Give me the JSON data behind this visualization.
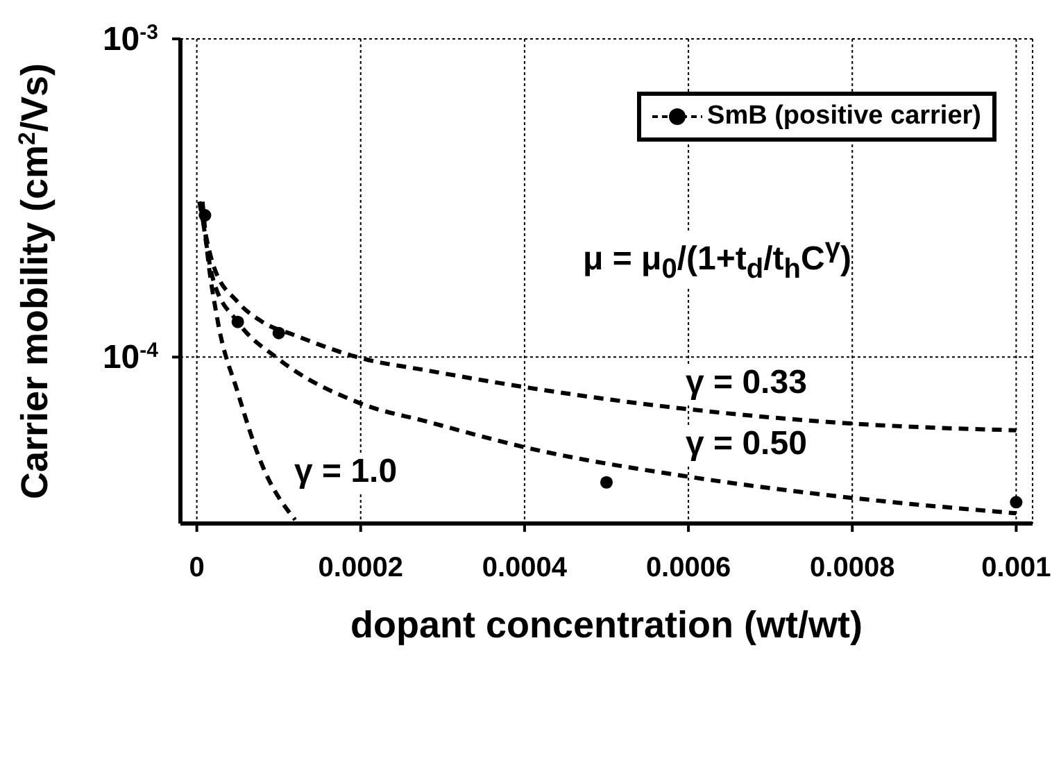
{
  "chart_data": {
    "type": "scatter",
    "xlabel": "dopant concentration (wt/wt)",
    "ylabel": "Carrier mobility (cm$^{2}$/Vs)",
    "xlim": [
      -2e-05,
      0.00102
    ],
    "xticks": [
      0,
      0.0002,
      0.0004,
      0.0006,
      0.0008,
      0.001
    ],
    "ylim": [
      3e-05,
      0.001
    ],
    "yticks": [
      {
        "value": 0.0001,
        "label": "10$^{-4}$"
      },
      {
        "value": 0.001,
        "label": "10$^{-3}$"
      }
    ],
    "log": "y",
    "grid": true,
    "legend": "top right",
    "marker": "circle",
    "series": [
      {
        "name": "SmB (positive carrier)",
        "color": "#000000",
        "x": [
          1e-05,
          5e-05,
          0.0001,
          0.0005,
          0.001
        ],
        "values": [
          0.000279,
          0.000129,
          0.000119,
          4.04e-05,
          3.5e-05
        ]
      },
      {
        "type": "line",
        "color": "#000000",
        "line_style": "dashed",
        "marker": "none",
        "x": [
          3e-06,
          2e-05,
          5e-05,
          8e-05,
          0.00012,
          0.0002,
          0.00028,
          0.0004,
          0.0006,
          0.0008,
          0.001
        ],
        "values": [
          0.000308,
          0.000195,
          0.000149,
          0.000129,
          0.000117,
          9.93e-05,
          9.09e-05,
          8.05e-05,
          6.86e-05,
          6.18e-05,
          5.89e-05
        ]
      },
      {
        "type": "line",
        "color": "#000000",
        "line_style": "dashed",
        "marker": "none",
        "x": [
          5e-06,
          2e-05,
          5e-05,
          0.0001,
          0.0002,
          0.00028,
          0.00041,
          0.0006,
          0.0008,
          0.001
        ],
        "values": [
          0.0003,
          0.000175,
          0.000129,
          9.85e-05,
          7.15e-05,
          6.28e-05,
          5.14e-05,
          4.21e-05,
          3.61e-05,
          3.23e-05
        ]
      },
      {
        "type": "line",
        "color": "#000000",
        "line_style": "dashed",
        "marker": "none",
        "x": [
          7e-06,
          1.2e-05,
          2.5e-05,
          5e-05,
          8e-05,
          0.00012
        ],
        "values": [
          0.000308,
          0.000223,
          0.000132,
          7.74e-05,
          4.56e-05,
          3.08e-05
        ]
      }
    ],
    "annotations": [
      "μ = μ$_{0}$/(1+t$_{d}$/t$_{h}$C$^{γ}$)",
      "γ = 0.33",
      "γ = 0.50",
      "γ = 1.0"
    ]
  }
}
